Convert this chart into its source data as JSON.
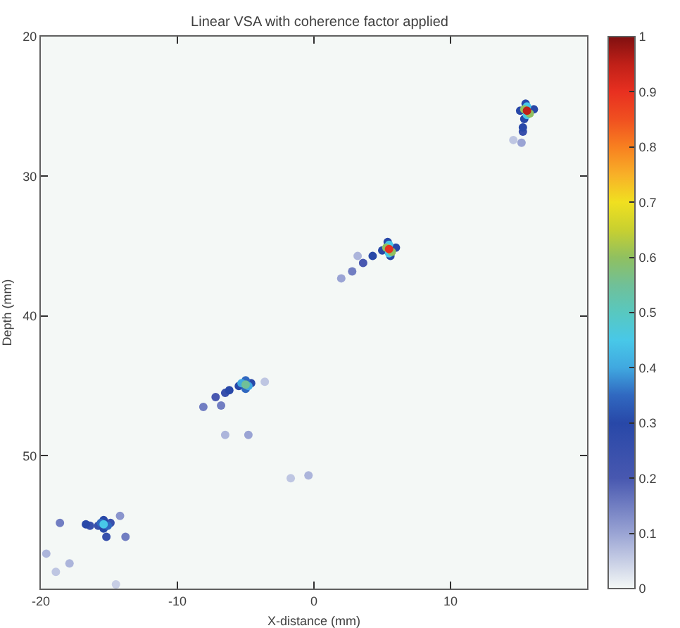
{
  "chart_data": {
    "type": "scatter",
    "title": "Linear VSA with coherence factor applied",
    "xlabel": "X-distance (mm)",
    "ylabel": "Depth (mm)",
    "x": [
      -14.5,
      14.6,
      -1.7,
      -3.6,
      -18.9,
      3.2,
      -6.5,
      -0.4,
      -19.6,
      -17.9,
      15.2,
      2.0,
      -4.8,
      -14.2,
      2.8,
      -8.1,
      -6.8,
      -18.6,
      -13.8,
      3.6,
      -7.2,
      15.3,
      -6.5,
      -15.8,
      -14.9,
      -16.4,
      -15.2,
      15.1,
      16.1,
      15.5,
      15.4,
      15.3,
      5.0,
      6.0,
      5.4,
      5.6,
      4.3,
      -5.5,
      -4.6,
      -6.2,
      -15.4,
      -15.4,
      -16.7,
      -5.0,
      -5.0,
      -15.6,
      -15.1,
      -5.3,
      -4.8,
      15.6,
      15.6,
      5.5,
      5.5,
      -15.4,
      -5.0,
      15.4,
      15.8,
      5.3,
      5.7,
      5.5,
      15.6
    ],
    "values": [
      59.2,
      27.4,
      51.6,
      44.7,
      58.3,
      35.7,
      48.5,
      51.4,
      57.0,
      57.7,
      27.6,
      37.3,
      48.5,
      54.3,
      36.8,
      46.5,
      46.4,
      54.8,
      55.8,
      36.2,
      45.8,
      26.8,
      45.5,
      55.0,
      54.8,
      55.0,
      55.8,
      25.3,
      25.2,
      24.8,
      25.9,
      26.5,
      35.3,
      35.1,
      34.7,
      35.7,
      35.7,
      45.0,
      44.8,
      45.3,
      54.6,
      55.2,
      54.9,
      44.6,
      45.2,
      54.8,
      55.0,
      44.8,
      45.0,
      25.0,
      25.6,
      34.9,
      35.5,
      54.9,
      44.9,
      25.2,
      25.5,
      35.1,
      35.4,
      35.2,
      25.3
    ],
    "cvalues": [
      0.05,
      0.06,
      0.06,
      0.06,
      0.06,
      0.08,
      0.08,
      0.08,
      0.08,
      0.08,
      0.1,
      0.1,
      0.1,
      0.12,
      0.15,
      0.15,
      0.15,
      0.15,
      0.15,
      0.2,
      0.2,
      0.25,
      0.25,
      0.25,
      0.25,
      0.25,
      0.25,
      0.3,
      0.3,
      0.3,
      0.3,
      0.3,
      0.3,
      0.3,
      0.3,
      0.3,
      0.3,
      0.3,
      0.3,
      0.3,
      0.3,
      0.3,
      0.3,
      0.35,
      0.35,
      0.35,
      0.35,
      0.4,
      0.4,
      0.45,
      0.45,
      0.45,
      0.45,
      0.45,
      0.55,
      0.6,
      0.6,
      0.6,
      0.6,
      0.9,
      0.95
    ],
    "xlim": [
      -20,
      20
    ],
    "ylim": [
      59.5,
      20
    ],
    "xticks": [
      -20,
      -10,
      0,
      10
    ],
    "yticks": [
      20,
      30,
      40,
      50
    ],
    "clim": [
      0,
      1
    ],
    "cticks": [
      0,
      0.1,
      0.2,
      0.3,
      0.4,
      0.5,
      0.6,
      0.7,
      0.8,
      0.9,
      1
    ],
    "marker": "circle"
  }
}
